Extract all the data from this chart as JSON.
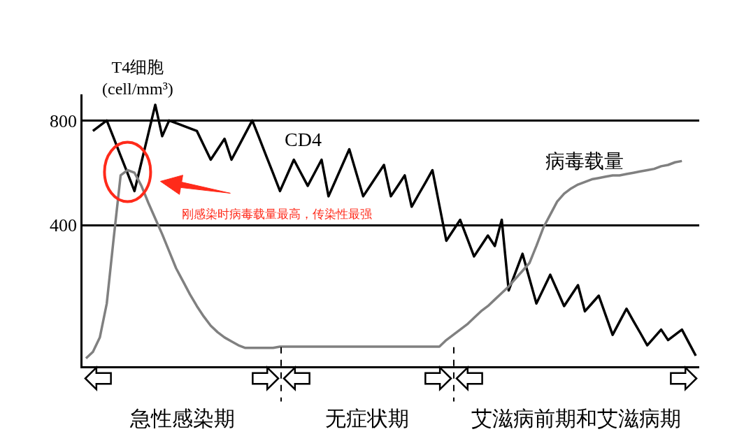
{
  "chart_data": {
    "type": "line",
    "ylabel": "T4细胞\n(cell/mm³)",
    "categories": [
      null,
      null,
      null,
      null,
      null,
      null,
      null,
      null,
      null,
      null,
      null,
      null,
      null,
      null,
      null,
      null,
      null,
      null,
      null,
      null,
      null,
      null,
      null,
      null,
      null,
      null,
      null,
      null,
      null,
      null,
      null,
      null,
      null,
      null,
      null,
      null,
      null,
      null,
      null,
      null,
      null,
      null,
      null,
      null,
      null,
      null,
      null,
      null,
      null,
      null,
      null,
      null,
      null,
      null,
      null,
      null,
      null,
      null,
      null,
      null,
      null,
      null,
      null,
      null,
      null,
      null,
      null,
      null,
      null,
      null,
      null,
      null,
      null,
      null,
      null,
      null,
      null,
      null,
      null,
      null,
      null,
      null,
      null,
      null,
      null,
      null,
      null,
      null,
      null
    ],
    "ylim": [
      -140,
      900
    ],
    "yticks": [
      400,
      800
    ],
    "tick_labels": "y",
    "grid": "y",
    "legend": false,
    "marker": "none",
    "line_style": "solid",
    "series": [
      {
        "name": "CD4",
        "color": "#000000",
        "values": [
          null,
          760,
          780,
          800,
          733,
          665,
          598,
          530,
          640,
          750,
          860,
          740,
          800,
          790,
          780,
          770,
          760,
          705,
          650,
          690,
          730,
          650,
          700,
          750,
          800,
          733,
          665,
          598,
          530,
          590,
          650,
          600,
          550,
          600,
          650,
          510,
          570,
          630,
          690,
          600,
          510,
          550,
          590,
          630,
          510,
          550,
          590,
          470,
          517,
          563,
          610,
          475,
          340,
          380,
          420,
          350,
          280,
          320,
          360,
          320,
          420,
          150,
          220,
          290,
          195,
          100,
          155,
          210,
          150,
          90,
          130,
          170,
          70,
          100,
          130,
          55,
          -20,
          30,
          80,
          33,
          -13,
          -60,
          -30,
          0,
          -40,
          -20,
          0,
          -50,
          -100
        ]
      },
      {
        "name": "病毒载量",
        "color": "#808080",
        "values": [
          -110,
          -85,
          -30,
          100,
          350,
          590,
          610,
          600,
          550,
          485,
          425,
          365,
          300,
          235,
          185,
          135,
          90,
          50,
          15,
          -10,
          -30,
          -45,
          -60,
          -70,
          -70,
          -70,
          -70,
          -70,
          -65,
          -65,
          -65,
          -65,
          -65,
          -65,
          -65,
          -65,
          -65,
          -65,
          -65,
          -65,
          -65,
          -65,
          -65,
          -65,
          -65,
          -65,
          -65,
          -65,
          -65,
          -65,
          -65,
          -65,
          -40,
          -20,
          0,
          20,
          45,
          70,
          90,
          115,
          140,
          165,
          195,
          225,
          255,
          320,
          390,
          440,
          490,
          520,
          540,
          555,
          565,
          575,
          580,
          585,
          590,
          590,
          595,
          600,
          605,
          610,
          615,
          625,
          630,
          640,
          645,
          null,
          null
        ]
      }
    ],
    "annotations": [
      "刚感染时病毒载量最高，传染性最强",
      "急性感染期",
      "无症状期",
      "艾滋病前期和艾滋病期"
    ]
  }
}
